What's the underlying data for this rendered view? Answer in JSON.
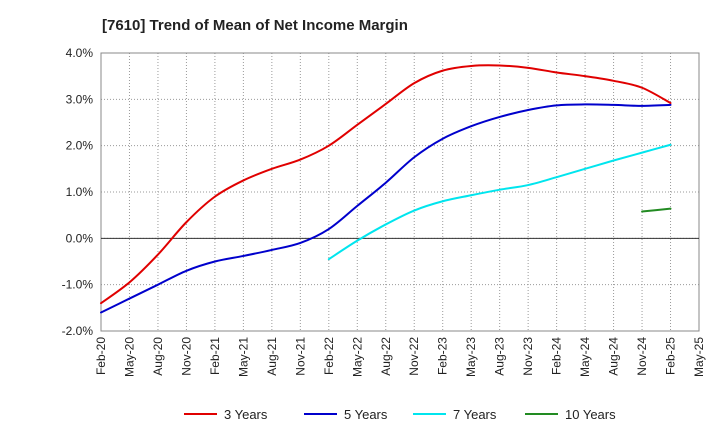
{
  "chart_data": {
    "type": "line",
    "title": "[7610]  Trend of Mean of Net Income Margin",
    "xlabel": "",
    "ylabel": "",
    "ylim": [
      -2.0,
      4.0
    ],
    "y_ticks": [
      "4.0%",
      "3.0%",
      "2.0%",
      "1.0%",
      "0.0%",
      "-1.0%",
      "-2.0%"
    ],
    "y_tick_values": [
      4.0,
      3.0,
      2.0,
      1.0,
      0.0,
      -1.0,
      -2.0
    ],
    "x_ticks": [
      "Feb-20",
      "May-20",
      "Aug-20",
      "Nov-20",
      "Feb-21",
      "May-21",
      "Aug-21",
      "Nov-21",
      "Feb-22",
      "May-22",
      "Aug-22",
      "Nov-22",
      "Feb-23",
      "May-23",
      "Aug-23",
      "Nov-23",
      "Feb-24",
      "May-24",
      "Aug-24",
      "Nov-24",
      "Feb-25",
      "May-25"
    ],
    "grid": true,
    "legend_position": "bottom",
    "series": [
      {
        "name": "3 Years",
        "color": "#e00000",
        "x": [
          "Feb-20",
          "May-20",
          "Aug-20",
          "Nov-20",
          "Feb-21",
          "May-21",
          "Aug-21",
          "Nov-21",
          "Feb-22",
          "May-22",
          "Aug-22",
          "Nov-22",
          "Feb-23",
          "May-23",
          "Aug-23",
          "Nov-23",
          "Feb-24",
          "May-24",
          "Aug-24",
          "Nov-24",
          "Feb-25"
        ],
        "values": [
          -1.4,
          -0.95,
          -0.35,
          0.35,
          0.9,
          1.25,
          1.5,
          1.7,
          2.0,
          2.45,
          2.9,
          3.35,
          3.62,
          3.72,
          3.73,
          3.68,
          3.58,
          3.5,
          3.4,
          3.25,
          2.92
        ]
      },
      {
        "name": "5 Years",
        "color": "#0000cc",
        "x": [
          "Feb-20",
          "May-20",
          "Aug-20",
          "Nov-20",
          "Feb-21",
          "May-21",
          "Aug-21",
          "Nov-21",
          "Feb-22",
          "May-22",
          "Aug-22",
          "Nov-22",
          "Feb-23",
          "May-23",
          "Aug-23",
          "Nov-23",
          "Feb-24",
          "May-24",
          "Aug-24",
          "Nov-24",
          "Feb-25"
        ],
        "values": [
          -1.6,
          -1.3,
          -1.0,
          -0.7,
          -0.5,
          -0.38,
          -0.25,
          -0.1,
          0.2,
          0.7,
          1.2,
          1.75,
          2.15,
          2.42,
          2.62,
          2.77,
          2.87,
          2.89,
          2.88,
          2.86,
          2.88
        ]
      },
      {
        "name": "7 Years",
        "color": "#00e5ee",
        "x": [
          "Feb-22",
          "May-22",
          "Aug-22",
          "Nov-22",
          "Feb-23",
          "May-23",
          "Aug-23",
          "Nov-23",
          "Feb-24",
          "May-24",
          "Aug-24",
          "Nov-24",
          "Feb-25"
        ],
        "values": [
          -0.45,
          -0.05,
          0.3,
          0.6,
          0.8,
          0.93,
          1.05,
          1.15,
          1.32,
          1.5,
          1.68,
          1.85,
          2.02
        ]
      },
      {
        "name": "10 Years",
        "color": "#228b22",
        "x": [
          "Nov-24",
          "Feb-25"
        ],
        "values": [
          0.58,
          0.64
        ]
      }
    ]
  }
}
